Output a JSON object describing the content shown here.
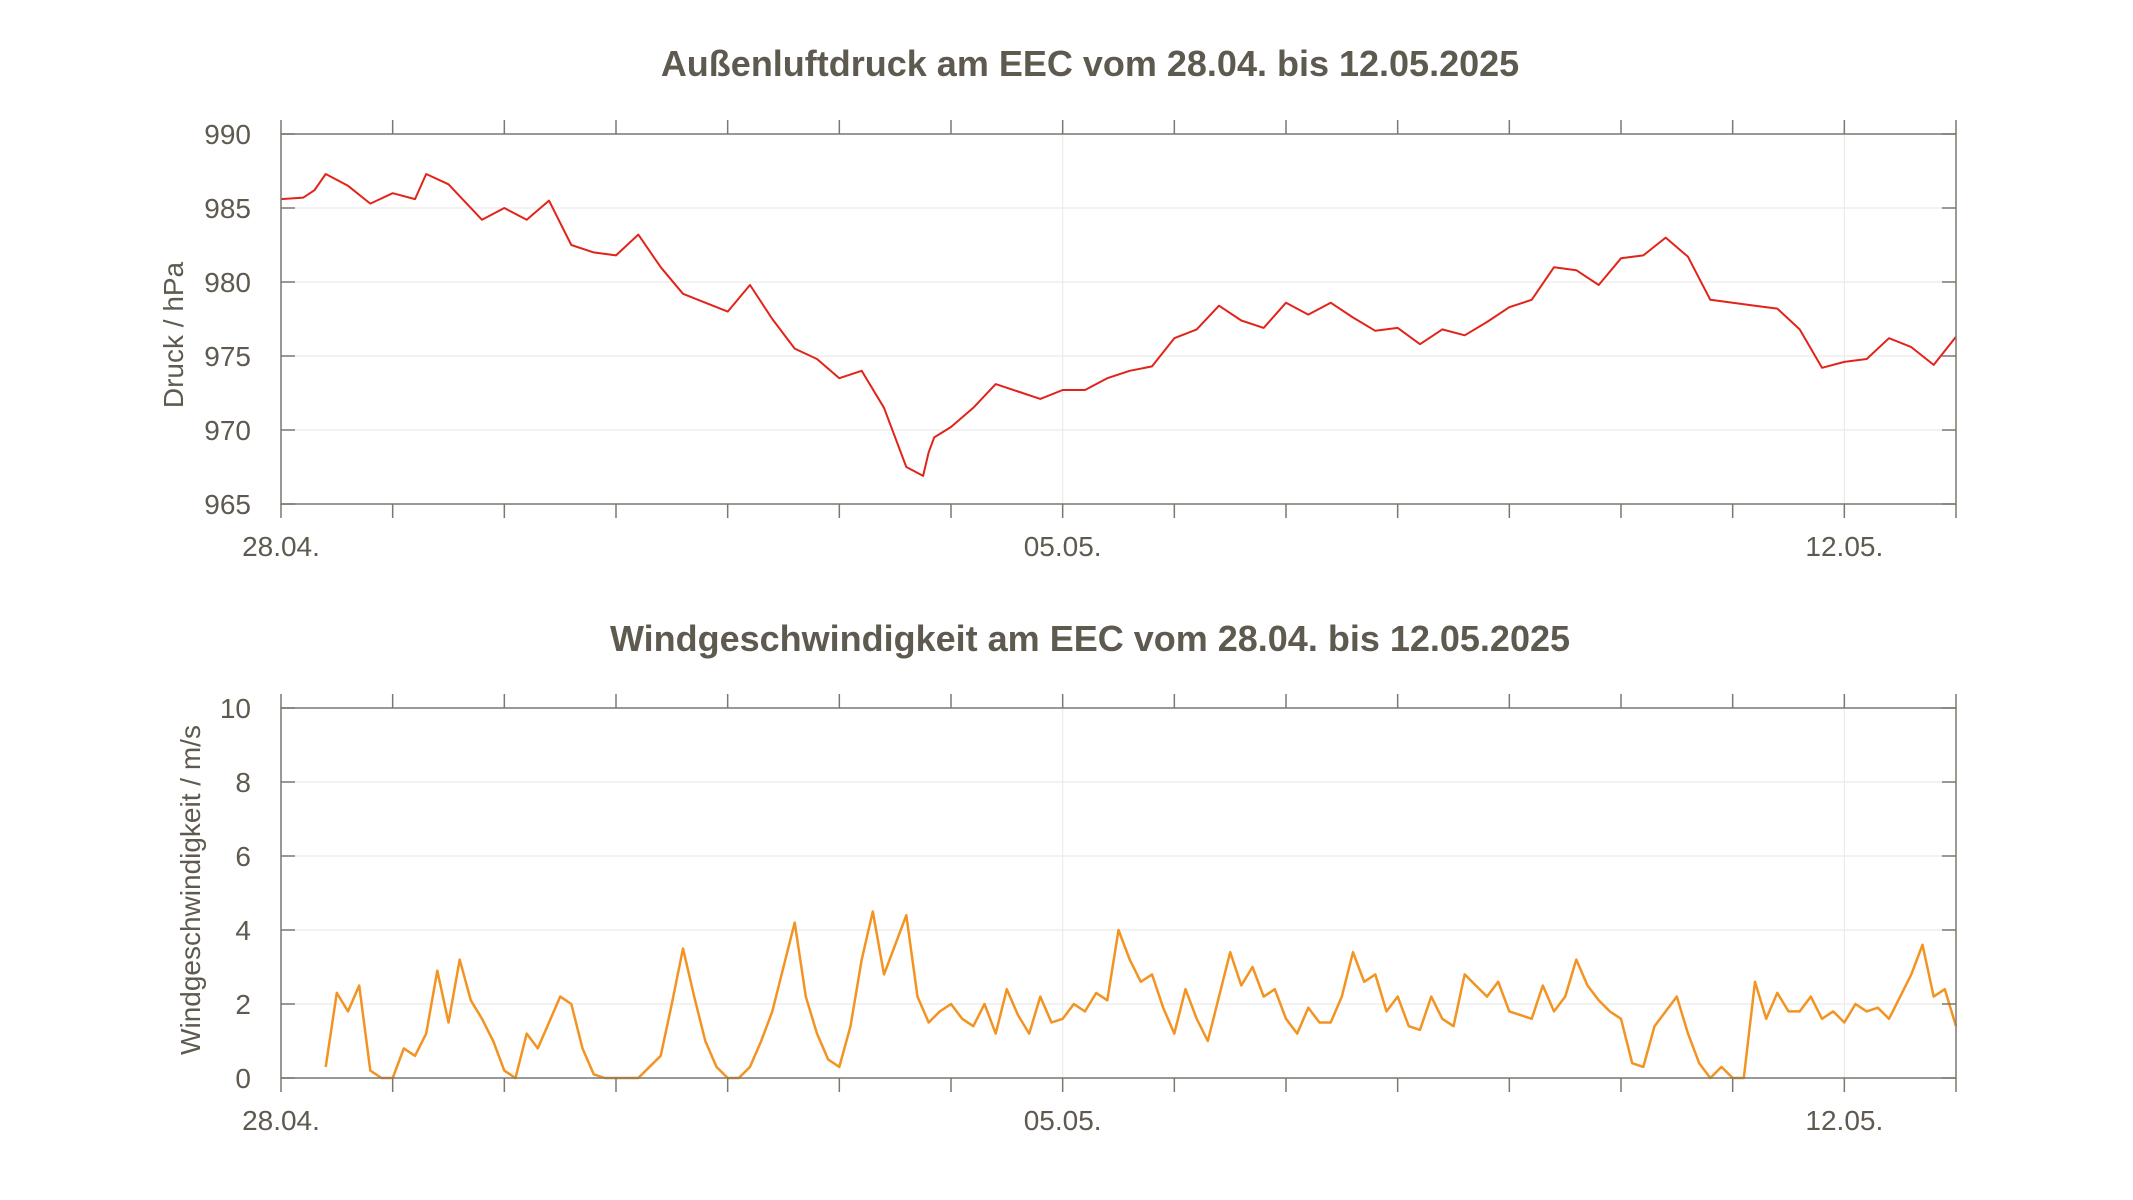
{
  "chart_data": [
    {
      "type": "line",
      "title": "Außenluftdruck am EEC vom 28.04. bis 12.05.2025",
      "xlabel": "",
      "ylabel": "Druck / hPa",
      "x_tick_labels": [
        "28.04.",
        "05.05.",
        "12.05."
      ],
      "x_tick_days": [
        0,
        7,
        14
      ],
      "y_ticks": [
        965,
        970,
        975,
        980,
        985,
        990
      ],
      "ylim": [
        965,
        990
      ],
      "xlim_days": [
        0,
        15
      ],
      "grid": true,
      "series": [
        {
          "color": "#e2231a",
          "x_days": [
            0,
            0.2,
            0.3,
            0.4,
            0.6,
            0.8,
            1.0,
            1.2,
            1.3,
            1.5,
            1.8,
            2.0,
            2.2,
            2.4,
            2.6,
            2.8,
            3.0,
            3.2,
            3.4,
            3.6,
            3.8,
            4.0,
            4.2,
            4.4,
            4.6,
            4.8,
            5.0,
            5.2,
            5.4,
            5.6,
            5.75,
            5.8,
            5.85,
            6.0,
            6.2,
            6.4,
            6.6,
            6.8,
            7.0,
            7.2,
            7.4,
            7.6,
            7.8,
            8.0,
            8.2,
            8.4,
            8.6,
            8.8,
            9.0,
            9.2,
            9.4,
            9.6,
            9.8,
            10.0,
            10.2,
            10.4,
            10.6,
            10.8,
            11.0,
            11.2,
            11.4,
            11.6,
            11.8,
            12.0,
            12.2,
            12.4,
            12.6,
            12.8,
            13.0,
            13.2,
            13.4,
            13.6,
            13.8,
            14.0,
            14.2,
            14.4,
            14.6,
            14.8,
            15.0
          ],
          "y": [
            985.6,
            985.7,
            986.2,
            987.3,
            986.5,
            985.3,
            986.0,
            985.6,
            987.3,
            986.6,
            984.2,
            985.0,
            984.2,
            985.5,
            982.5,
            982.0,
            981.8,
            983.2,
            981.0,
            979.2,
            978.6,
            978.0,
            979.8,
            977.5,
            975.5,
            974.8,
            973.5,
            974.0,
            971.5,
            967.5,
            966.9,
            968.5,
            969.5,
            970.2,
            971.5,
            973.1,
            972.6,
            972.1,
            972.7,
            972.7,
            973.5,
            974.0,
            974.3,
            976.2,
            976.8,
            978.4,
            977.4,
            976.9,
            978.6,
            977.8,
            978.6,
            977.6,
            976.7,
            976.9,
            975.8,
            976.8,
            976.4,
            977.3,
            978.3,
            978.8,
            981.0,
            980.8,
            979.8,
            981.6,
            981.8,
            983.0,
            981.7,
            978.8,
            978.6,
            978.4,
            978.2,
            976.8,
            974.2,
            974.6,
            974.8,
            976.2,
            975.6,
            974.4,
            976.3
          ]
        }
      ]
    },
    {
      "type": "line",
      "title": "Windgeschwindigkeit am EEC vom 28.04. bis 12.05.2025",
      "xlabel": "",
      "ylabel": "Windgeschwindigkeit / m/s",
      "x_tick_labels": [
        "28.04.",
        "05.05.",
        "12.05."
      ],
      "x_tick_days": [
        0,
        7,
        14
      ],
      "y_ticks": [
        0,
        2,
        4,
        6,
        8,
        10
      ],
      "ylim": [
        0,
        10
      ],
      "xlim_days": [
        0,
        15
      ],
      "grid": true,
      "series": [
        {
          "color": "#f39322",
          "x_days": [
            0.4,
            0.5,
            0.6,
            0.7,
            0.8,
            0.9,
            1.0,
            1.1,
            1.2,
            1.3,
            1.4,
            1.5,
            1.6,
            1.7,
            1.8,
            1.9,
            2.0,
            2.1,
            2.2,
            2.3,
            2.4,
            2.5,
            2.6,
            2.7,
            2.8,
            2.9,
            3.0,
            3.2,
            3.4,
            3.5,
            3.6,
            3.7,
            3.8,
            3.9,
            4.0,
            4.1,
            4.2,
            4.3,
            4.4,
            4.5,
            4.6,
            4.7,
            4.8,
            4.9,
            5.0,
            5.1,
            5.2,
            5.3,
            5.4,
            5.5,
            5.6,
            5.7,
            5.8,
            5.9,
            6.0,
            6.1,
            6.2,
            6.3,
            6.4,
            6.5,
            6.6,
            6.7,
            6.8,
            6.9,
            7.0,
            7.1,
            7.2,
            7.3,
            7.4,
            7.5,
            7.6,
            7.7,
            7.8,
            7.9,
            8.0,
            8.1,
            8.2,
            8.3,
            8.4,
            8.5,
            8.6,
            8.7,
            8.8,
            8.9,
            9.0,
            9.1,
            9.2,
            9.3,
            9.4,
            9.5,
            9.6,
            9.7,
            9.8,
            9.9,
            10.0,
            10.1,
            10.2,
            10.3,
            10.4,
            10.5,
            10.6,
            10.7,
            10.8,
            10.9,
            11.0,
            11.1,
            11.2,
            11.3,
            11.4,
            11.5,
            11.6,
            11.7,
            11.8,
            11.9,
            12.0,
            12.1,
            12.2,
            12.3,
            12.4,
            12.5,
            12.6,
            12.7,
            12.8,
            12.9,
            13.0,
            13.1,
            13.2,
            13.3,
            13.4,
            13.5,
            13.6,
            13.7,
            13.8,
            13.9,
            14.0,
            14.1,
            14.2,
            14.3,
            14.4,
            14.5,
            14.6,
            14.7,
            14.8,
            14.9,
            15.0
          ],
          "y": [
            0.3,
            2.3,
            1.8,
            2.5,
            0.2,
            0,
            0,
            0.8,
            0.6,
            1.2,
            2.9,
            1.5,
            3.2,
            2.1,
            1.6,
            1.0,
            0.2,
            0,
            1.2,
            0.8,
            1.5,
            2.2,
            2.0,
            0.8,
            0.1,
            0,
            0,
            0,
            0.6,
            2.0,
            3.5,
            2.2,
            1.0,
            0.3,
            0,
            0,
            0.3,
            1.0,
            1.8,
            3.0,
            4.2,
            2.2,
            1.2,
            0.5,
            0.3,
            1.4,
            3.2,
            4.5,
            2.8,
            3.6,
            4.4,
            2.2,
            1.5,
            1.8,
            2.0,
            1.6,
            1.4,
            2.0,
            1.2,
            2.4,
            1.7,
            1.2,
            2.2,
            1.5,
            1.6,
            2.0,
            1.8,
            2.3,
            2.1,
            4.0,
            3.2,
            2.6,
            2.8,
            1.9,
            1.2,
            2.4,
            1.6,
            1.0,
            2.2,
            3.4,
            2.5,
            3.0,
            2.2,
            2.4,
            1.6,
            1.2,
            1.9,
            1.5,
            1.5,
            2.2,
            3.4,
            2.6,
            2.8,
            1.8,
            2.2,
            1.4,
            1.3,
            2.2,
            1.6,
            1.4,
            2.8,
            2.5,
            2.2,
            2.6,
            1.8,
            1.7,
            1.6,
            2.5,
            1.8,
            2.2,
            3.2,
            2.5,
            2.1,
            1.8,
            1.6,
            0.4,
            0.3,
            1.4,
            1.8,
            2.2,
            1.2,
            0.4,
            0,
            0.3,
            0,
            0,
            2.6,
            1.6,
            2.3,
            1.8,
            1.8,
            2.2,
            1.6,
            1.8,
            1.5,
            2.0,
            1.8,
            1.9,
            1.6,
            2.2,
            2.8,
            3.6,
            2.2,
            2.4,
            1.4
          ]
        }
      ]
    }
  ]
}
